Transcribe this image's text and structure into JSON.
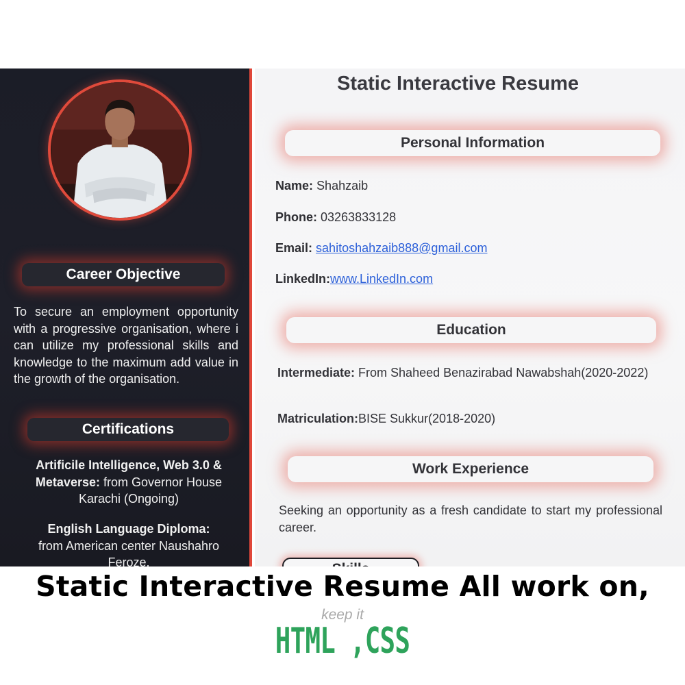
{
  "resume": {
    "title": "Static Interactive Resume",
    "sidebar": {
      "career_heading": "Career Objective",
      "career_text": "To secure an employment opportunity with a progressive organisation, where i can utilize my professional skills and knowledge to the maximum add value in the growth of the organisation.",
      "certifications_heading": "Certifications",
      "certifications": [
        {
          "title": "Artificile Intelligence, Web 3.0 & Metaverse:",
          "detail": "from Governor House Karachi (Ongoing)"
        },
        {
          "title": "English Language Diploma:",
          "detail": "from American center Naushahro Feroze."
        }
      ]
    },
    "personal": {
      "heading": "Personal Information",
      "name_label": "Name:",
      "name_value": "Shahzaib",
      "phone_label": "Phone:",
      "phone_value": "03263833128",
      "email_label": "Email:",
      "email_value": "sahitoshahzaib888@gmail.com",
      "linkedin_label": "LinkedIn:",
      "linkedin_value": "www.LinkedIn.com"
    },
    "education": {
      "heading": "Education",
      "intermediate_label": "Intermediate:",
      "intermediate_value": "From Shaheed Benazirabad Nawabshah(2020-2022)",
      "matric_label": "Matriculation:",
      "matric_value": "BISE Sukkur(2018-2020)"
    },
    "work": {
      "heading": "Work Experience",
      "text": "Seeking an opportunity as a fresh candidate to start my professional career."
    },
    "skills_heading": "Skills"
  },
  "caption": {
    "headline": "Static Interactive Resume All work on,",
    "tagline": "keep it",
    "tech": "HTML ,CSS"
  },
  "colors": {
    "accent": "#e0473a",
    "sidebar_bg": "#1e1f29",
    "link": "#2b5fd9",
    "tech_green": "#2ea35b"
  },
  "icons": {
    "profile_photo": "profile-photo"
  }
}
